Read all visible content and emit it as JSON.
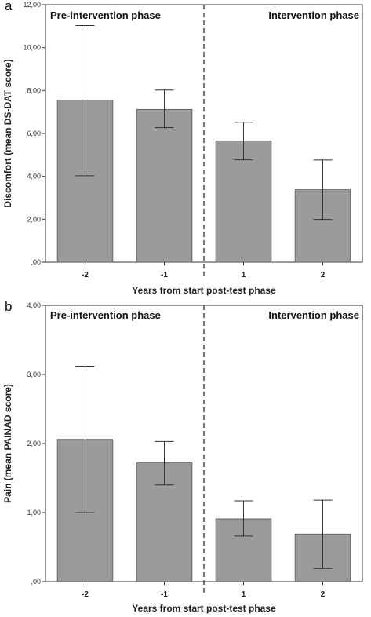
{
  "chart_data": [
    {
      "type": "bar",
      "panel_label": "a",
      "categories": [
        "-2",
        "-1",
        "1",
        "2"
      ],
      "values": [
        7.55,
        7.12,
        5.65,
        3.38
      ],
      "error_low": [
        4.03,
        6.27,
        4.77,
        1.99
      ],
      "error_high": [
        11.03,
        8.02,
        6.52,
        4.76
      ],
      "title": "",
      "xlabel": "Years from start post-test phase",
      "ylabel": "Discomfort (mean DS-DAT score)",
      "ylim": [
        0,
        12
      ],
      "yticks": [
        0,
        2,
        4,
        6,
        8,
        10,
        12
      ],
      "ytick_labels": [
        ",00",
        "2,00",
        "4,00",
        "6,00",
        "8,00",
        "10,00",
        "12,00"
      ],
      "phase_labels": [
        "Pre-intervention phase",
        "Intervention phase"
      ],
      "divider_between": [
        "-1",
        "1"
      ],
      "bar_color": "#9b9b9b",
      "grid": false
    },
    {
      "type": "bar",
      "panel_label": "b",
      "categories": [
        "-2",
        "-1",
        "1",
        "2"
      ],
      "values": [
        2.06,
        1.72,
        0.91,
        0.69
      ],
      "error_low": [
        1.0,
        1.4,
        0.66,
        0.19
      ],
      "error_high": [
        3.12,
        2.03,
        1.17,
        1.18
      ],
      "title": "",
      "xlabel": "Years from start post-test phase",
      "ylabel": "Pain (mean PAINAD score)",
      "ylim": [
        0,
        4
      ],
      "yticks": [
        0,
        1,
        2,
        3,
        4
      ],
      "ytick_labels": [
        ",00",
        "1,00",
        "2,00",
        "3,00",
        "4,00"
      ],
      "phase_labels": [
        "Pre-intervention phase",
        "Intervention phase"
      ],
      "divider_between": [
        "-1",
        "1"
      ],
      "bar_color": "#9b9b9b",
      "grid": false
    }
  ]
}
